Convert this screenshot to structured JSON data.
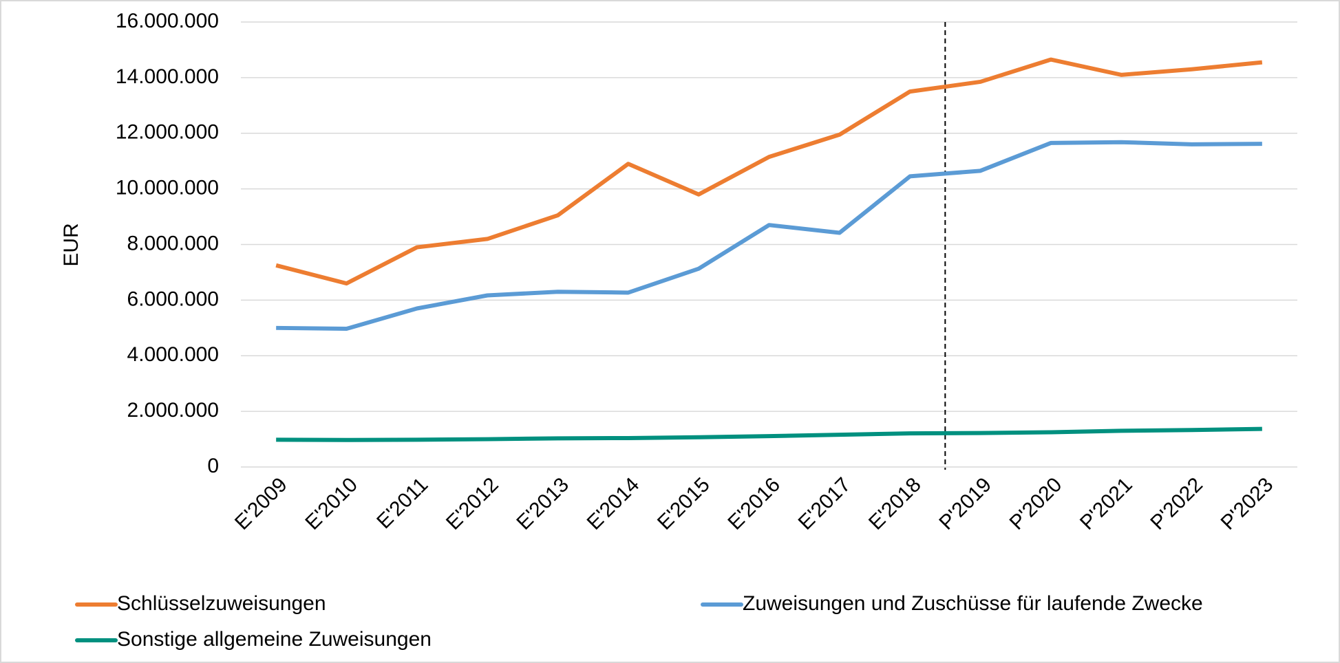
{
  "chart_data": {
    "type": "line",
    "y_label": "EUR",
    "categories": [
      "E'2009",
      "E'2010",
      "E'2011",
      "E'2012",
      "E'2013",
      "E'2014",
      "E'2015",
      "E'2016",
      "E'2017",
      "E'2018",
      "P'2019",
      "P'2020",
      "P'2021",
      "P'2022",
      "P'2023"
    ],
    "series": [
      {
        "name": "Schlüsselzuweisungen",
        "color": "#ed7d31",
        "values": [
          7250000,
          6600000,
          7900000,
          8200000,
          9050000,
          10900000,
          9800000,
          11150000,
          11950000,
          13500000,
          13850000,
          14650000,
          14100000,
          14300000,
          14550000
        ]
      },
      {
        "name": "Zuweisungen und Zuschüsse für laufende Zwecke",
        "color": "#5b9bd5",
        "values": [
          5000000,
          4970000,
          5700000,
          6170000,
          6300000,
          6270000,
          7130000,
          8700000,
          8420000,
          10450000,
          10650000,
          11650000,
          11680000,
          11600000,
          11620000
        ]
      },
      {
        "name": "Sonstige allgemeine Zuweisungen",
        "color": "#00907f",
        "values": [
          980000,
          970000,
          980000,
          1000000,
          1030000,
          1040000,
          1070000,
          1110000,
          1160000,
          1210000,
          1220000,
          1250000,
          1300000,
          1330000,
          1370000
        ]
      }
    ],
    "ylim": [
      0,
      16000000
    ],
    "yticks": [
      0,
      {
        "value": 2000000,
        "label": "2.000.000"
      },
      {
        "value": 4000000,
        "label": "4.000.000"
      },
      {
        "value": 6000000,
        "label": "6.000.000"
      },
      {
        "value": 8000000,
        "label": "8.000.000"
      },
      {
        "value": 10000000,
        "label": "10.000.000"
      },
      {
        "value": 12000000,
        "label": "12.000.000"
      },
      {
        "value": 14000000,
        "label": "14.000.000"
      },
      {
        "value": 16000000,
        "label": "16.000.000"
      }
    ],
    "grid": true
  }
}
